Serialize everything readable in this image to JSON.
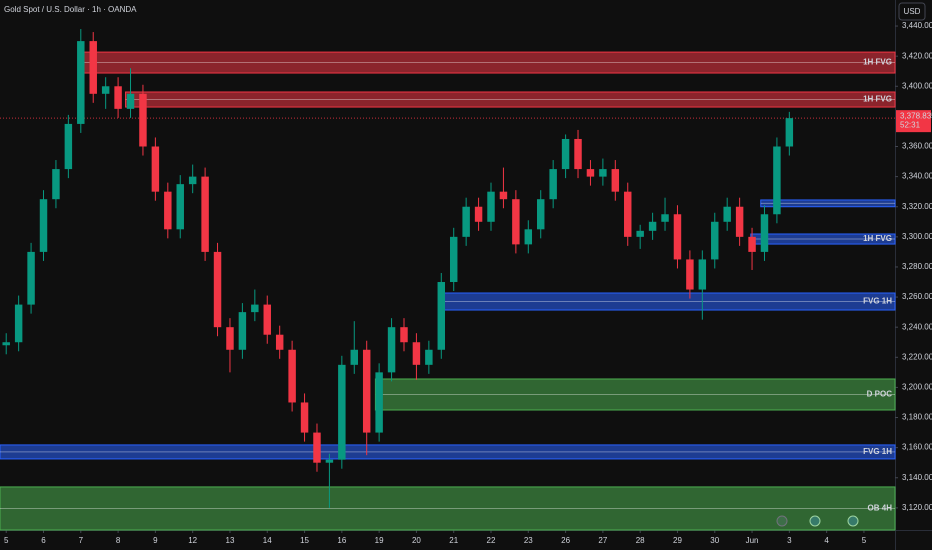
{
  "chart_data": {
    "type": "candlestick",
    "title": "Gold Spot / U.S. Dollar · 1h · OANDA",
    "currency": "USD",
    "up_color": "#089981",
    "down_color": "#f23645",
    "xlim": [
      -0.5,
      71.5
    ],
    "ylim": [
      3105.3,
      3457.3
    ],
    "xticks": [
      {
        "value": 0,
        "label": "5"
      },
      {
        "value": 3,
        "label": "6"
      },
      {
        "value": 6,
        "label": "7"
      },
      {
        "value": 9,
        "label": "8"
      },
      {
        "value": 12,
        "label": "9"
      },
      {
        "value": 15,
        "label": "12"
      },
      {
        "value": 18,
        "label": "13"
      },
      {
        "value": 21,
        "label": "14"
      },
      {
        "value": 24,
        "label": "15"
      },
      {
        "value": 27,
        "label": "16"
      },
      {
        "value": 30,
        "label": "19"
      },
      {
        "value": 33,
        "label": "20"
      },
      {
        "value": 36,
        "label": "21"
      },
      {
        "value": 39,
        "label": "22"
      },
      {
        "value": 42,
        "label": "23"
      },
      {
        "value": 45,
        "label": "26"
      },
      {
        "value": 48,
        "label": "27"
      },
      {
        "value": 51,
        "label": "28"
      },
      {
        "value": 54,
        "label": "29"
      },
      {
        "value": 57,
        "label": "30"
      },
      {
        "value": 60,
        "label": "Jun"
      },
      {
        "value": 63,
        "label": "3"
      },
      {
        "value": 66,
        "label": "4"
      },
      {
        "value": 69,
        "label": "5"
      }
    ],
    "yticks": [
      {
        "value": 3440,
        "label": "3,440.000"
      },
      {
        "value": 3420,
        "label": "3,420.000"
      },
      {
        "value": 3400,
        "label": "3,400.000"
      },
      {
        "value": 3360,
        "label": "3,360.000"
      },
      {
        "value": 3340,
        "label": "3,340.000"
      },
      {
        "value": 3320,
        "label": "3,320.000"
      },
      {
        "value": 3300,
        "label": "3,300.000"
      },
      {
        "value": 3280,
        "label": "3,280.000"
      },
      {
        "value": 3260,
        "label": "3,260.000"
      },
      {
        "value": 3240,
        "label": "3,240.000"
      },
      {
        "value": 3220,
        "label": "3,220.000"
      },
      {
        "value": 3200,
        "label": "3,200.000"
      },
      {
        "value": 3180,
        "label": "3,180.000"
      },
      {
        "value": 3160,
        "label": "3,160.000"
      },
      {
        "value": 3140,
        "label": "3,140.000"
      },
      {
        "value": 3120,
        "label": "3,120.000"
      }
    ],
    "current_price": {
      "value": 3378.835,
      "label": "3,378.835"
    },
    "countdown": "52:31",
    "x": [
      0,
      1,
      2,
      3,
      4,
      5,
      6,
      7,
      8,
      9,
      10,
      11,
      12,
      13,
      14,
      15,
      16,
      17,
      18,
      19,
      20,
      21,
      22,
      23,
      24,
      25,
      26,
      27,
      28,
      29,
      30,
      31,
      32,
      33,
      34,
      35,
      36,
      37,
      38,
      39,
      40,
      41,
      42,
      43,
      44,
      45,
      46,
      47,
      48,
      49,
      50,
      51,
      52,
      53,
      54,
      55,
      56,
      57,
      58,
      59,
      60,
      61,
      62,
      63
    ],
    "candles": [
      [
        3228,
        3236,
        3222,
        3230
      ],
      [
        3230,
        3261,
        3224,
        3255
      ],
      [
        3255,
        3296,
        3249,
        3290
      ],
      [
        3290,
        3331,
        3284,
        3325
      ],
      [
        3325,
        3351,
        3319,
        3345
      ],
      [
        3345,
        3381,
        3339,
        3375
      ],
      [
        3375,
        3438,
        3369,
        3430
      ],
      [
        3430,
        3436,
        3389,
        3395
      ],
      [
        3395,
        3406,
        3385,
        3400
      ],
      [
        3400,
        3406,
        3379,
        3385
      ],
      [
        3385,
        3412,
        3379,
        3395
      ],
      [
        3395,
        3401,
        3354,
        3360
      ],
      [
        3360,
        3366,
        3324,
        3330
      ],
      [
        3330,
        3336,
        3299,
        3305
      ],
      [
        3305,
        3341,
        3299,
        3335
      ],
      [
        3335,
        3348,
        3329,
        3340
      ],
      [
        3340,
        3346,
        3284,
        3290
      ],
      [
        3290,
        3296,
        3234,
        3240
      ],
      [
        3240,
        3246,
        3210,
        3225
      ],
      [
        3225,
        3256,
        3219,
        3250
      ],
      [
        3250,
        3265,
        3244,
        3255
      ],
      [
        3255,
        3261,
        3229,
        3235
      ],
      [
        3235,
        3241,
        3219,
        3225
      ],
      [
        3225,
        3231,
        3184,
        3190
      ],
      [
        3190,
        3196,
        3164,
        3170
      ],
      [
        3170,
        3176,
        3144,
        3150
      ],
      [
        3150,
        3156,
        3120,
        3152
      ],
      [
        3152,
        3221,
        3146,
        3215
      ],
      [
        3215,
        3244,
        3209,
        3225
      ],
      [
        3225,
        3231,
        3155,
        3170
      ],
      [
        3170,
        3216,
        3164,
        3210
      ],
      [
        3210,
        3246,
        3204,
        3240
      ],
      [
        3240,
        3246,
        3224,
        3230
      ],
      [
        3230,
        3236,
        3205,
        3215
      ],
      [
        3215,
        3231,
        3209,
        3225
      ],
      [
        3225,
        3276,
        3219,
        3270
      ],
      [
        3270,
        3306,
        3264,
        3300
      ],
      [
        3300,
        3326,
        3294,
        3320
      ],
      [
        3320,
        3326,
        3304,
        3310
      ],
      [
        3310,
        3336,
        3304,
        3330
      ],
      [
        3330,
        3346,
        3319,
        3325
      ],
      [
        3325,
        3331,
        3289,
        3295
      ],
      [
        3295,
        3311,
        3289,
        3305
      ],
      [
        3305,
        3331,
        3299,
        3325
      ],
      [
        3325,
        3351,
        3319,
        3345
      ],
      [
        3345,
        3368,
        3339,
        3365
      ],
      [
        3365,
        3371,
        3339,
        3345
      ],
      [
        3345,
        3351,
        3334,
        3340
      ],
      [
        3340,
        3352,
        3334,
        3345
      ],
      [
        3345,
        3351,
        3324,
        3330
      ],
      [
        3330,
        3336,
        3294,
        3300
      ],
      [
        3300,
        3308,
        3292,
        3304
      ],
      [
        3304,
        3316,
        3298,
        3310
      ],
      [
        3310,
        3326,
        3304,
        3315
      ],
      [
        3315,
        3321,
        3279,
        3285
      ],
      [
        3285,
        3291,
        3259,
        3265
      ],
      [
        3265,
        3291,
        3245,
        3285
      ],
      [
        3285,
        3316,
        3279,
        3310
      ],
      [
        3310,
        3326,
        3304,
        3320
      ],
      [
        3320,
        3326,
        3294,
        3300
      ],
      [
        3300,
        3306,
        3278,
        3290
      ],
      [
        3290,
        3321,
        3284,
        3315
      ],
      [
        3315,
        3366,
        3309,
        3360
      ],
      [
        3360,
        3383,
        3354,
        3378.835
      ]
    ],
    "zones": [
      {
        "label": "1H FVG",
        "x_start": 6,
        "top": 3422.7,
        "bottom": 3408.8,
        "color": "#f23645"
      },
      {
        "label": "1H FVG",
        "x_start": 9.6,
        "top": 3396.2,
        "bottom": 3386.2,
        "color": "#f23645"
      },
      {
        "x_start": 60.7,
        "top": 3324.5,
        "bottom": 3320,
        "color": "#2962ff"
      },
      {
        "label": "1H FVG",
        "x_start": 59.9,
        "top": 3301.9,
        "bottom": 3295.2,
        "color": "#2962ff"
      },
      {
        "label": "FVG 1H",
        "x_start": 35,
        "top": 3262.7,
        "bottom": 3251.4,
        "color": "#2962ff"
      },
      {
        "label": "D POC",
        "x_start": 29.7,
        "top": 3205.6,
        "bottom": 3185,
        "color": "#4caf50"
      },
      {
        "label": "FVG 1H",
        "x_start": -0.5,
        "top": 3161.8,
        "bottom": 3152.5,
        "color": "#2962ff"
      },
      {
        "label": "OB 4H",
        "x_start": -0.5,
        "top": 3133.9,
        "bottom": 3105.3,
        "color": "#4caf50"
      }
    ]
  }
}
